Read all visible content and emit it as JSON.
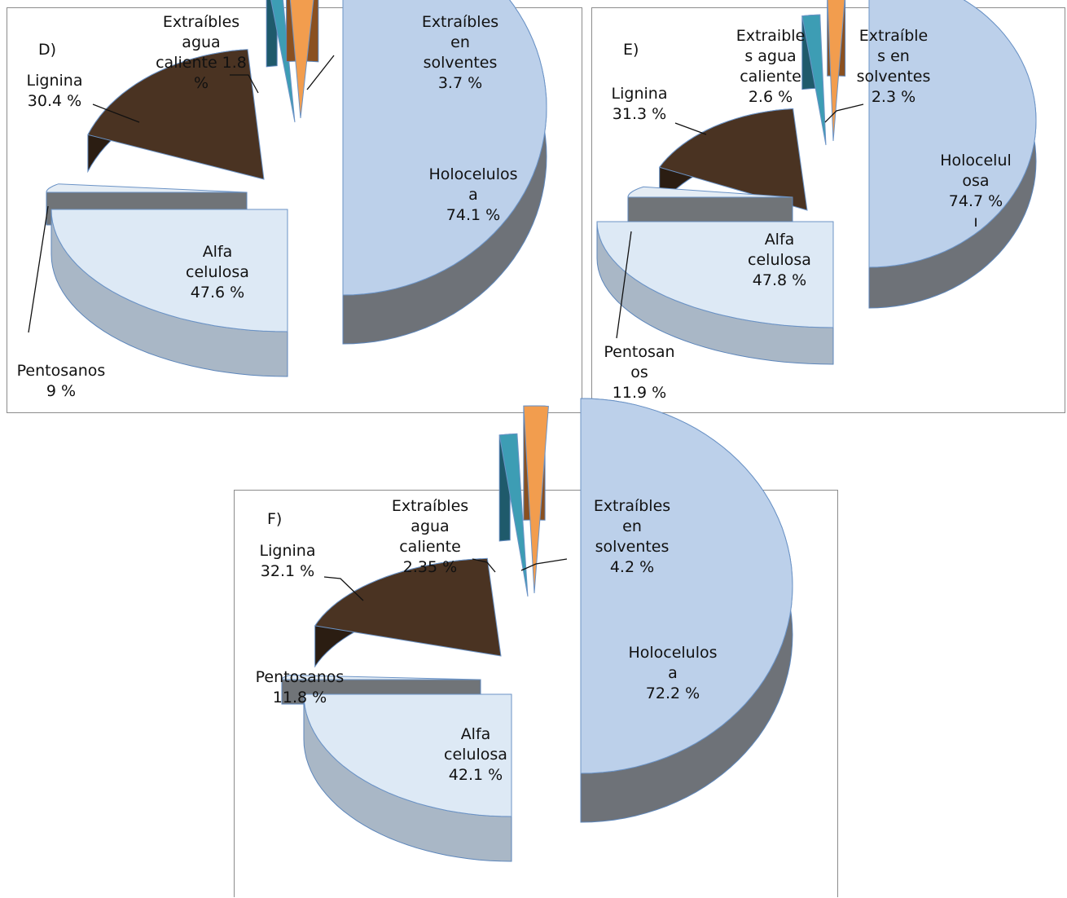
{
  "colors": {
    "holocelulosa_top": "#bcd0ea",
    "holocelulosa_side": "#6e7278",
    "alfa_top": "#dde9f5",
    "alfa_side": "#a9b7c6",
    "pentosanos_top": "#e4ecf4",
    "pentosanos_side": "#707478",
    "lignina_top": "#4a3322",
    "lignina_side": "#2b1d12",
    "agua_top": "#3d9db4",
    "agua_side": "#1f5a6b",
    "solventes_top": "#f29d4e",
    "solventes_side": "#8a5020",
    "leader": "#111111"
  },
  "chart_data": [
    {
      "type": "pie",
      "panel_label": "D)",
      "slices": [
        {
          "name": "Holocelulosa",
          "value": 74.1,
          "label_lines": [
            "Holocelulos",
            "a",
            "74.1 %"
          ]
        },
        {
          "name": "Alfa celulosa",
          "value": 47.6,
          "label_lines": [
            "Alfa",
            "celulosa",
            "47.6 %"
          ]
        },
        {
          "name": "Pentosanos",
          "value": 9,
          "label_lines": [
            "Pentosanos",
            "9 %"
          ]
        },
        {
          "name": "Lignina",
          "value": 30.4,
          "label_lines": [
            "Lignina",
            "30.4 %"
          ]
        },
        {
          "name": "Extraíbles agua caliente",
          "value": 1.8,
          "label_lines": [
            "Extraíbles",
            "agua",
            "caliente 1.8",
            "%"
          ]
        },
        {
          "name": "Extraíbles en solventes",
          "value": 3.7,
          "label_lines": [
            "Extraíbles",
            "en",
            "solventes",
            "3.7 %"
          ]
        }
      ]
    },
    {
      "type": "pie",
      "panel_label": "E)",
      "slices": [
        {
          "name": "Holocelulosa",
          "value": 74.7,
          "label_lines": [
            "Holocelul",
            "osa",
            "74.7 %",
            "ı"
          ]
        },
        {
          "name": "Alfa celulosa",
          "value": 47.8,
          "label_lines": [
            "Alfa",
            "celulosa",
            "47.8 %"
          ]
        },
        {
          "name": "Pentosanos",
          "value": 11.9,
          "label_lines": [
            "Pentosan",
            "os",
            "11.9 %"
          ]
        },
        {
          "name": "Lignina",
          "value": 31.3,
          "label_lines": [
            "Lignina",
            "31.3 %"
          ]
        },
        {
          "name": "Extraíbles agua caliente",
          "value": 2.6,
          "label_lines": [
            "Extraible",
            "s agua",
            "caliente",
            "2.6 %"
          ]
        },
        {
          "name": "Extraíbles en solventes",
          "value": 2.3,
          "label_lines": [
            "Extraíble",
            "s  en",
            "solventes",
            "2.3 %"
          ]
        }
      ]
    },
    {
      "type": "pie",
      "panel_label": "F)",
      "slices": [
        {
          "name": "Holocelulosa",
          "value": 72.2,
          "label_lines": [
            "Holocelulos",
            "a",
            "72.2 %"
          ]
        },
        {
          "name": "Alfa celulosa",
          "value": 42.1,
          "label_lines": [
            "Alfa",
            "celulosa",
            "42.1 %"
          ]
        },
        {
          "name": "Pentosanos",
          "value": 11.8,
          "label_lines": [
            "Pentosanos",
            "11.8 %"
          ]
        },
        {
          "name": "Lignina",
          "value": 32.1,
          "label_lines": [
            "Lignina",
            "32.1 %"
          ]
        },
        {
          "name": "Extraíbles agua caliente",
          "value": 2.35,
          "label_lines": [
            "Extraíbles",
            "agua",
            "caliente",
            "2.35 %"
          ]
        },
        {
          "name": "Extraíbles en solventes",
          "value": 4.2,
          "label_lines": [
            "Extraíbles",
            "en",
            "solventes",
            "4.2 %"
          ]
        }
      ]
    }
  ]
}
